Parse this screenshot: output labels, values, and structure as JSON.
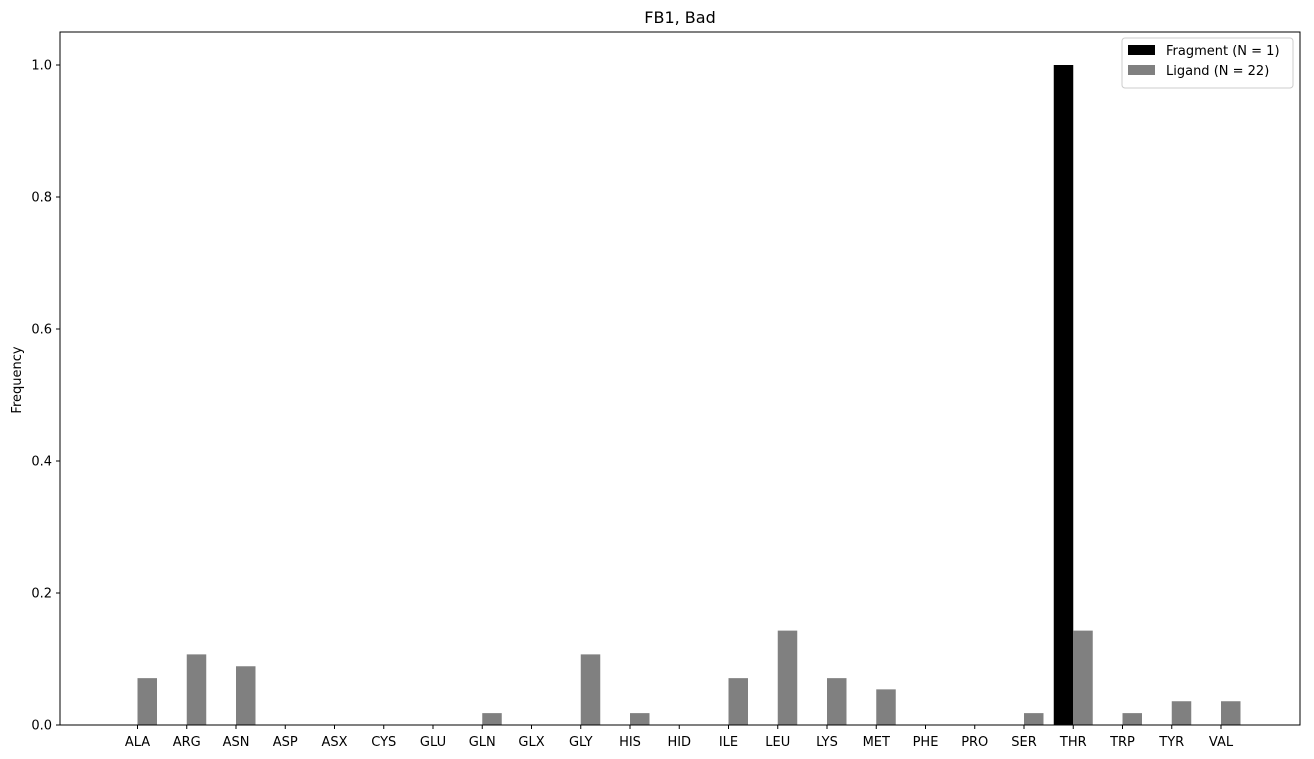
{
  "chart_data": {
    "type": "bar",
    "title": "FB1, Bad",
    "xlabel": "",
    "ylabel": "Frequency",
    "ylim": [
      0,
      1.05
    ],
    "yticks": [
      0.0,
      0.2,
      0.4,
      0.6,
      0.8,
      1.0
    ],
    "ytick_labels": [
      "0.0",
      "0.2",
      "0.4",
      "0.6",
      "0.8",
      "1.0"
    ],
    "categories": [
      "ALA",
      "ARG",
      "ASN",
      "ASP",
      "ASX",
      "CYS",
      "GLU",
      "GLN",
      "GLX",
      "GLY",
      "HIS",
      "HID",
      "ILE",
      "LEU",
      "LYS",
      "MET",
      "PHE",
      "PRO",
      "SER",
      "THR",
      "TRP",
      "TYR",
      "VAL"
    ],
    "series": [
      {
        "name": "Fragment (N = 1)",
        "color": "#000000",
        "values": [
          0,
          0,
          0,
          0,
          0,
          0,
          0,
          0,
          0,
          0,
          0,
          0,
          0,
          0,
          0,
          0,
          0,
          0,
          0,
          1.0,
          0,
          0,
          0
        ]
      },
      {
        "name": "Ligand (N = 22)",
        "color": "#808080",
        "values": [
          0.071,
          0.107,
          0.089,
          0,
          0,
          0,
          0,
          0.018,
          0,
          0.107,
          0.018,
          0,
          0.071,
          0.143,
          0.071,
          0.054,
          0,
          0,
          0.018,
          0.143,
          0.018,
          0.036,
          0.036
        ]
      }
    ],
    "legend_position": "top-right",
    "grid": false
  }
}
